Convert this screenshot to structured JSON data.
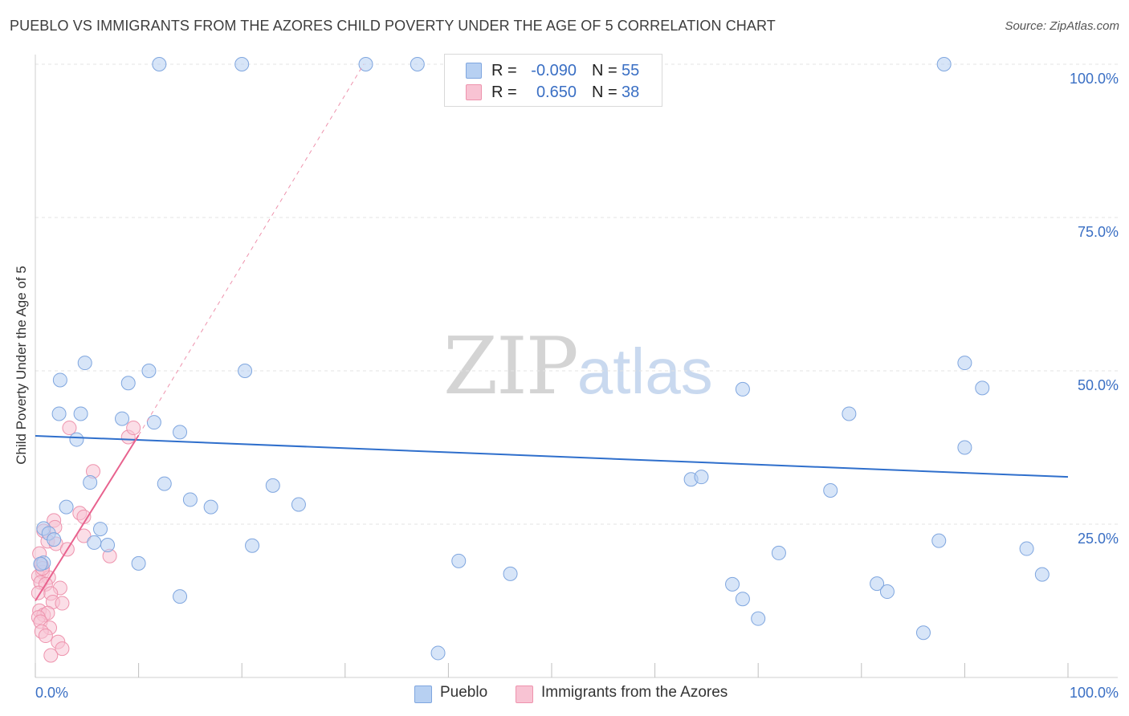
{
  "header": {
    "title": "PUEBLO VS IMMIGRANTS FROM THE AZORES CHILD POVERTY UNDER THE AGE OF 5 CORRELATION CHART",
    "source": "Source: ZipAtlas.com"
  },
  "watermark": {
    "zip": "ZIP",
    "atlas": "atlas"
  },
  "stats": [
    {
      "r_label": "R =",
      "r_value": "-0.090",
      "n_label": "N =",
      "n_value": "55"
    },
    {
      "r_label": "R =",
      "r_value": "0.650",
      "n_label": "N =",
      "n_value": "38"
    }
  ],
  "legend": {
    "series_a": "Pueblo",
    "series_b": "Immigrants from the Azores"
  },
  "colors": {
    "blue_fill": "#b7d0f2",
    "blue_stroke": "#7fa6df",
    "blue_line": "#2f6fcc",
    "pink_fill": "#f8c3d3",
    "pink_stroke": "#ee93ad",
    "pink_line": "#e8628e",
    "tick_label": "#3a6fc4",
    "grid": "#e3e3e3"
  },
  "chart_data": {
    "type": "scatter",
    "title": "PUEBLO VS IMMIGRANTS FROM THE AZORES CHILD POVERTY UNDER THE AGE OF 5 CORRELATION CHART",
    "xlabel": "",
    "ylabel": "Child Poverty Under the Age of 5",
    "xlim": [
      0,
      100
    ],
    "ylim": [
      0,
      100
    ],
    "x_tick_labels": [
      "0.0%",
      "100.0%"
    ],
    "y_ticks": [
      25,
      50,
      75,
      100
    ],
    "y_tick_labels": [
      "25.0%",
      "50.0%",
      "75.0%",
      "100.0%"
    ],
    "grid": true,
    "series": [
      {
        "name": "Pueblo",
        "r": -0.09,
        "n": 55,
        "trend": {
          "x": [
            0,
            100
          ],
          "y": [
            39.4,
            32.7
          ]
        },
        "points": [
          [
            12,
            100
          ],
          [
            20,
            100
          ],
          [
            32,
            100
          ],
          [
            37,
            100
          ],
          [
            88,
            100
          ],
          [
            4.8,
            51.3
          ],
          [
            11,
            50
          ],
          [
            20.3,
            50
          ],
          [
            2.4,
            48.5
          ],
          [
            9,
            48
          ],
          [
            68.5,
            47
          ],
          [
            90,
            51.3
          ],
          [
            91.7,
            47.2
          ],
          [
            2.3,
            43
          ],
          [
            4.4,
            43
          ],
          [
            8.4,
            42.2
          ],
          [
            11.5,
            41.6
          ],
          [
            14,
            40
          ],
          [
            78.8,
            43
          ],
          [
            4,
            38.8
          ],
          [
            90,
            37.5
          ],
          [
            5.3,
            31.8
          ],
          [
            12.5,
            31.6
          ],
          [
            23,
            31.3
          ],
          [
            63.5,
            32.3
          ],
          [
            64.5,
            32.7
          ],
          [
            77,
            30.5
          ],
          [
            15,
            29
          ],
          [
            3,
            27.8
          ],
          [
            17,
            27.8
          ],
          [
            25.5,
            28.2
          ],
          [
            0.8,
            24.3
          ],
          [
            1.3,
            23.5
          ],
          [
            6.3,
            24.2
          ],
          [
            1.8,
            22.5
          ],
          [
            5.7,
            22
          ],
          [
            7,
            21.6
          ],
          [
            21,
            21.5
          ],
          [
            72,
            20.3
          ],
          [
            87.5,
            22.3
          ],
          [
            96,
            21
          ],
          [
            0.8,
            18.7
          ],
          [
            10,
            18.6
          ],
          [
            41,
            19
          ],
          [
            46,
            16.9
          ],
          [
            97.5,
            16.8
          ],
          [
            67.5,
            15.2
          ],
          [
            81.5,
            15.3
          ],
          [
            82.5,
            14
          ],
          [
            68.5,
            12.8
          ],
          [
            14,
            13.2
          ],
          [
            70,
            9.6
          ],
          [
            86,
            7.3
          ],
          [
            39,
            4
          ],
          [
            0.5,
            18.5
          ]
        ]
      },
      {
        "name": "Immigrants from the Azores",
        "r": 0.65,
        "n": 38,
        "trend": {
          "x": [
            0,
            10
          ],
          "y": [
            12.5,
            39.5
          ],
          "dashed_to": {
            "x": 31.8,
            "y": 100
          }
        },
        "points": [
          [
            3.3,
            40.7
          ],
          [
            9,
            39.2
          ],
          [
            9.5,
            40.7
          ],
          [
            5.6,
            33.6
          ],
          [
            1.8,
            25.6
          ],
          [
            4.3,
            26.8
          ],
          [
            4.7,
            26.2
          ],
          [
            0.8,
            23.9
          ],
          [
            1.2,
            22.2
          ],
          [
            4.7,
            23.1
          ],
          [
            2,
            21.8
          ],
          [
            0.4,
            20.2
          ],
          [
            7.2,
            19.8
          ],
          [
            0.6,
            18.4
          ],
          [
            0.7,
            17.2
          ],
          [
            0.3,
            16.5
          ],
          [
            1.3,
            16.3
          ],
          [
            0.5,
            15.5
          ],
          [
            1,
            15.2
          ],
          [
            2.4,
            14.6
          ],
          [
            0.3,
            13.8
          ],
          [
            1.5,
            13.7
          ],
          [
            1.7,
            12.3
          ],
          [
            2.6,
            12.1
          ],
          [
            0.4,
            10.9
          ],
          [
            0.8,
            10.2
          ],
          [
            1.2,
            10.5
          ],
          [
            0.3,
            9.8
          ],
          [
            0.5,
            9.1
          ],
          [
            1.4,
            8.1
          ],
          [
            0.6,
            7.5
          ],
          [
            1,
            6.8
          ],
          [
            2.2,
            5.8
          ],
          [
            2.6,
            4.7
          ],
          [
            1.5,
            3.6
          ],
          [
            0.7,
            17.8
          ],
          [
            1.9,
            24.5
          ],
          [
            3.1,
            20.9
          ]
        ]
      }
    ]
  }
}
